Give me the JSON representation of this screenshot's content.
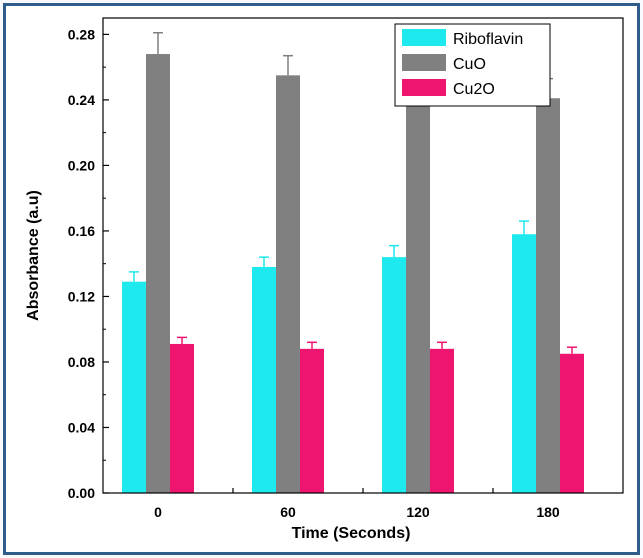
{
  "chart_data": {
    "type": "bar",
    "title": "",
    "xlabel": "Time (Seconds)",
    "ylabel": "Absorbance (a.u)",
    "categories": [
      "0",
      "60",
      "120",
      "180"
    ],
    "ylim": [
      0,
      0.29
    ],
    "yticks": [
      "0.00",
      "0.04",
      "0.08",
      "0.12",
      "0.16",
      "0.20",
      "0.24",
      "0.28"
    ],
    "legend_position": "top-right",
    "grid": false,
    "series": [
      {
        "name": "Riboflavin",
        "color": "#1de9ee",
        "values": [
          0.129,
          0.138,
          0.144,
          0.158
        ],
        "errors": [
          0.006,
          0.006,
          0.007,
          0.008
        ]
      },
      {
        "name": "CuO",
        "color": "#808080",
        "values": [
          0.268,
          0.255,
          0.247,
          0.241
        ],
        "errors": [
          0.013,
          0.012,
          0.012,
          0.012
        ]
      },
      {
        "name": "Cu2O",
        "color": "#ee1570",
        "values": [
          0.091,
          0.088,
          0.088,
          0.085
        ],
        "errors": [
          0.004,
          0.004,
          0.004,
          0.004
        ]
      }
    ]
  }
}
